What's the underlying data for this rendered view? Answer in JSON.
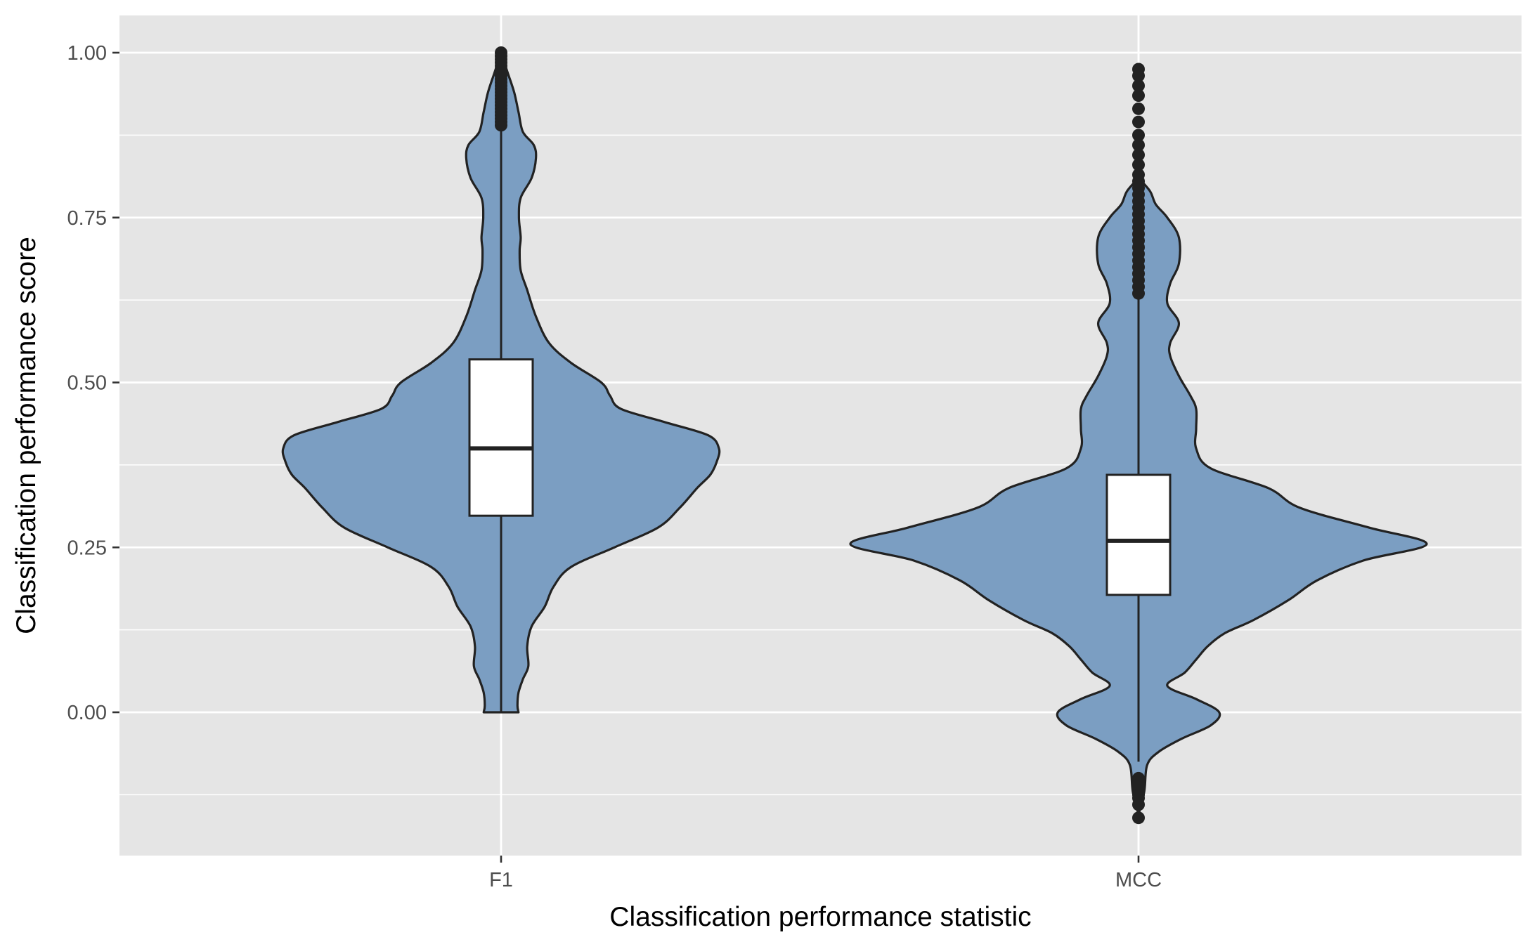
{
  "chart_data": {
    "type": "violin",
    "xlabel": "Classification performance statistic",
    "ylabel": "Classification performance score",
    "ylim": [
      -0.215,
      1.06
    ],
    "y_ticks": [
      "0.00",
      "0.25",
      "0.50",
      "0.75",
      "1.00"
    ],
    "y_tick_values": [
      0,
      0.25,
      0.5,
      0.75,
      1.0
    ],
    "y_minor_values": [
      -0.125,
      0.125,
      0.375,
      0.625,
      0.875
    ],
    "grid": true,
    "categories": [
      "F1",
      "MCC"
    ],
    "colors": {
      "panel": "#e5e5e5",
      "grid": "#ffffff",
      "violin_fill": "#7b9ec2",
      "outline": "#222222",
      "box_fill": "#ffffff"
    },
    "violins": [
      {
        "name": "F1",
        "density_profile": [
          [
            0.0,
            0.08
          ],
          [
            0.01,
            0.075
          ],
          [
            0.03,
            0.08
          ],
          [
            0.05,
            0.1
          ],
          [
            0.07,
            0.125
          ],
          [
            0.1,
            0.12
          ],
          [
            0.13,
            0.14
          ],
          [
            0.16,
            0.2
          ],
          [
            0.19,
            0.24
          ],
          [
            0.22,
            0.32
          ],
          [
            0.25,
            0.52
          ],
          [
            0.28,
            0.72
          ],
          [
            0.31,
            0.82
          ],
          [
            0.34,
            0.9
          ],
          [
            0.36,
            0.96
          ],
          [
            0.38,
            0.99
          ],
          [
            0.4,
            1.0
          ],
          [
            0.42,
            0.95
          ],
          [
            0.44,
            0.75
          ],
          [
            0.46,
            0.55
          ],
          [
            0.48,
            0.5
          ],
          [
            0.5,
            0.46
          ],
          [
            0.53,
            0.32
          ],
          [
            0.56,
            0.22
          ],
          [
            0.6,
            0.16
          ],
          [
            0.64,
            0.12
          ],
          [
            0.67,
            0.09
          ],
          [
            0.7,
            0.085
          ],
          [
            0.72,
            0.09
          ],
          [
            0.75,
            0.082
          ],
          [
            0.78,
            0.09
          ],
          [
            0.81,
            0.14
          ],
          [
            0.84,
            0.16
          ],
          [
            0.86,
            0.15
          ],
          [
            0.88,
            0.1
          ],
          [
            0.91,
            0.08
          ],
          [
            0.94,
            0.06
          ],
          [
            0.97,
            0.03
          ],
          [
            1.0,
            0.0
          ]
        ],
        "box": {
          "lower_whisker": 0.0,
          "q1": 0.298,
          "median": 0.4,
          "q3": 0.535,
          "upper_whisker": 0.888
        },
        "outliers": [
          0.89,
          0.895,
          0.9,
          0.905,
          0.91,
          0.915,
          0.92,
          0.925,
          0.93,
          0.935,
          0.94,
          0.945,
          0.95,
          0.955,
          0.96,
          0.965,
          0.97,
          0.975,
          0.98,
          0.985,
          0.99,
          0.995,
          1.0
        ]
      },
      {
        "name": "MCC",
        "density_profile": [
          [
            -0.155,
            0.0
          ],
          [
            -0.12,
            0.02
          ],
          [
            -0.08,
            0.03
          ],
          [
            -0.06,
            0.07
          ],
          [
            -0.04,
            0.15
          ],
          [
            -0.02,
            0.25
          ],
          [
            0.0,
            0.28
          ],
          [
            0.02,
            0.2
          ],
          [
            0.04,
            0.1
          ],
          [
            0.06,
            0.16
          ],
          [
            0.08,
            0.2
          ],
          [
            0.1,
            0.24
          ],
          [
            0.12,
            0.3
          ],
          [
            0.14,
            0.4
          ],
          [
            0.17,
            0.52
          ],
          [
            0.2,
            0.62
          ],
          [
            0.23,
            0.78
          ],
          [
            0.255,
            1.0
          ],
          [
            0.28,
            0.8
          ],
          [
            0.31,
            0.56
          ],
          [
            0.34,
            0.45
          ],
          [
            0.37,
            0.25
          ],
          [
            0.4,
            0.2
          ],
          [
            0.43,
            0.2
          ],
          [
            0.46,
            0.2
          ],
          [
            0.48,
            0.18
          ],
          [
            0.51,
            0.14
          ],
          [
            0.54,
            0.11
          ],
          [
            0.56,
            0.11
          ],
          [
            0.59,
            0.14
          ],
          [
            0.62,
            0.1
          ],
          [
            0.65,
            0.11
          ],
          [
            0.68,
            0.14
          ],
          [
            0.72,
            0.14
          ],
          [
            0.75,
            0.1
          ],
          [
            0.77,
            0.06
          ],
          [
            0.79,
            0.04
          ],
          [
            0.81,
            0.0
          ]
        ],
        "box": {
          "lower_whisker": -0.075,
          "q1": 0.178,
          "median": 0.26,
          "q3": 0.36,
          "upper_whisker": 0.632
        },
        "outliers": [
          0.635,
          0.645,
          0.655,
          0.665,
          0.675,
          0.685,
          0.695,
          0.705,
          0.715,
          0.725,
          0.735,
          0.745,
          0.755,
          0.765,
          0.775,
          0.785,
          0.795,
          0.805,
          0.815,
          0.83,
          0.845,
          0.86,
          0.875,
          0.895,
          0.915,
          0.935,
          0.95,
          0.965,
          0.975,
          -0.1,
          -0.105,
          -0.11,
          -0.115,
          -0.12,
          -0.125,
          -0.13,
          -0.14,
          -0.16
        ]
      }
    ]
  }
}
